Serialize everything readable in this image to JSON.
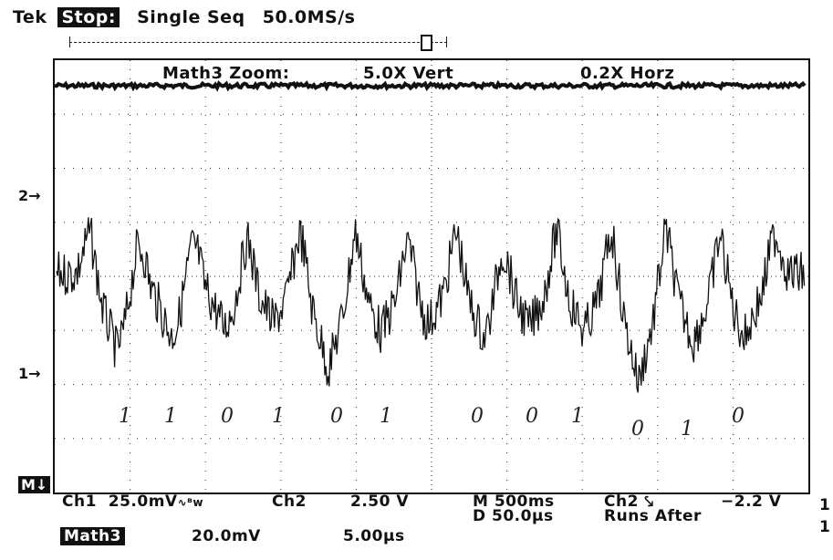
{
  "header": {
    "brand": "Tek",
    "state": "Stop:",
    "mode": "Single Seq",
    "sample_rate": "50.0MS/s"
  },
  "zoom": {
    "label": "Math3 Zoom:",
    "vert": "5.0X Vert",
    "horz": "0.2X Horz"
  },
  "markers": {
    "ch2": "2→",
    "ch1": "1→",
    "math": "M↓"
  },
  "bits": [
    "1",
    "1",
    "0",
    "1",
    "0",
    "1",
    "0",
    "0",
    "1",
    "0",
    "1",
    "0"
  ],
  "readout": {
    "ch1_label": "Ch1",
    "ch1_scale": "25.0mV",
    "ch1_bw": "∿ᴮw",
    "ch2_label": "Ch2",
    "ch2_scale": "2.50 V",
    "time_scale": "M 500ms",
    "trig_source": "Ch2 ⤥",
    "trig_level": "−2.2 V",
    "delay": "D 50.0µs",
    "runs": "Runs After",
    "math_label": "Math3",
    "math_scale": "20.0mV",
    "math_time": "5.00µs",
    "edge_num_1": "1",
    "edge_num_2": "1"
  }
}
